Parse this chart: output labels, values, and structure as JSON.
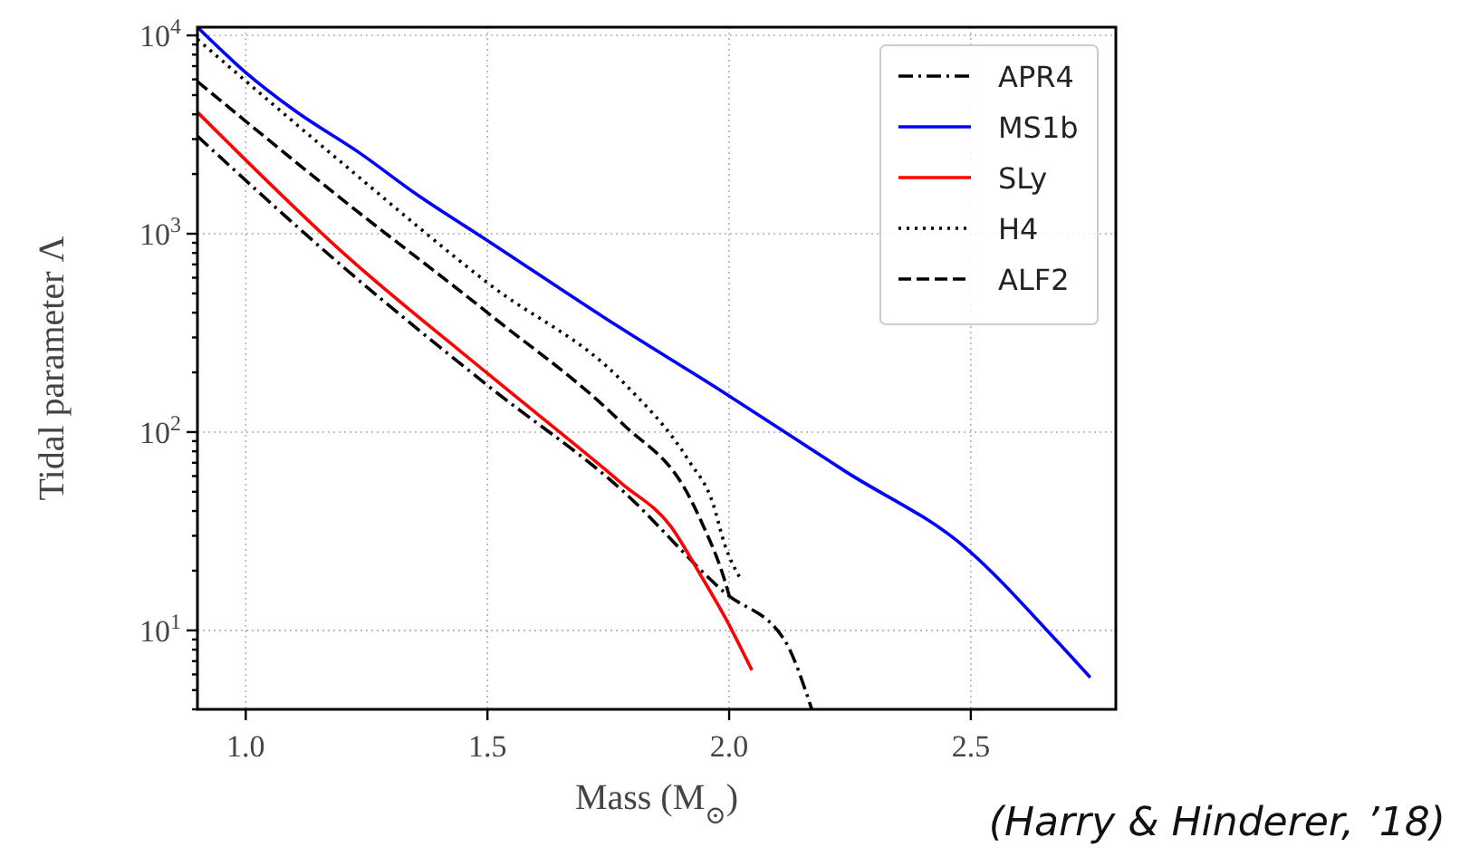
{
  "chart_data": {
    "type": "line",
    "xlabel": "Mass (M$_{⊙}$)",
    "ylabel": "Tidal parameter Λ",
    "log": "y",
    "grid": true,
    "legend": "top right",
    "xlim": [
      0.9,
      2.8
    ],
    "ylim": [
      4,
      11000
    ],
    "xticks": [
      {
        "value": 1,
        "label": "1.0"
      },
      {
        "value": 1.5,
        "label": "1.5"
      },
      {
        "value": 2,
        "label": "2.0"
      },
      {
        "value": 2.5,
        "label": "2.5"
      }
    ],
    "yticks": [
      {
        "value": 4,
        "label": null
      },
      {
        "value": 5,
        "label": null
      },
      {
        "value": 6,
        "label": null
      },
      {
        "value": 7,
        "label": null
      },
      {
        "value": 8,
        "label": null
      },
      {
        "value": 9,
        "label": null
      },
      {
        "value": 10,
        "label": "10$^{1}$"
      },
      {
        "value": 20,
        "label": null
      },
      {
        "value": 30,
        "label": null
      },
      {
        "value": 40,
        "label": null
      },
      {
        "value": 50,
        "label": null
      },
      {
        "value": 60,
        "label": null
      },
      {
        "value": 70,
        "label": null
      },
      {
        "value": 80,
        "label": null
      },
      {
        "value": 90,
        "label": null
      },
      {
        "value": 100,
        "label": "10$^{2}$"
      },
      {
        "value": 200,
        "label": null
      },
      {
        "value": 300,
        "label": null
      },
      {
        "value": 400,
        "label": null
      },
      {
        "value": 500,
        "label": null
      },
      {
        "value": 600,
        "label": null
      },
      {
        "value": 700,
        "label": null
      },
      {
        "value": 800,
        "label": null
      },
      {
        "value": 900,
        "label": null
      },
      {
        "value": 1000,
        "label": "10$^{3}$"
      },
      {
        "value": 2000,
        "label": null
      },
      {
        "value": 3000,
        "label": null
      },
      {
        "value": 4000,
        "label": null
      },
      {
        "value": 5000,
        "label": null
      },
      {
        "value": 6000,
        "label": null
      },
      {
        "value": 7000,
        "label": null
      },
      {
        "value": 8000,
        "label": null
      },
      {
        "value": 9000,
        "label": null
      },
      {
        "value": 10000,
        "label": "10$^{4}$"
      }
    ],
    "annotations": [
      "(Harry & Hinderer, ’18)"
    ],
    "series": [
      {
        "name": "APR4",
        "color": "#000000",
        "line_style": "dashdot",
        "x": [
          0.9,
          1.2,
          1.504,
          1.778,
          1.991,
          2.115,
          2.171
        ],
        "values": [
          3100,
          685,
          169,
          51,
          15.5,
          8.9,
          4
        ]
      },
      {
        "name": "MS1b",
        "color": "#0000ff",
        "line_style": "solid",
        "x": [
          0.9,
          1.0,
          1.1,
          1.241,
          1.35,
          1.504,
          1.74,
          1.991,
          2.242,
          2.49,
          2.677,
          2.747
        ],
        "values": [
          11000,
          6500,
          4200,
          2500,
          1600,
          910,
          380,
          157,
          63,
          26,
          8.9,
          5.8
        ]
      },
      {
        "name": "SLy",
        "color": "#ff0000",
        "line_style": "solid",
        "x": [
          0.9,
          1.204,
          1.504,
          1.778,
          1.879,
          1.941,
          1.991,
          2.047
        ],
        "values": [
          4100,
          790,
          194,
          55,
          33.5,
          19,
          11.7,
          6.3
        ]
      },
      {
        "name": "H4",
        "color": "#000000",
        "line_style": "dotted",
        "x": [
          0.9,
          1.2,
          1.504,
          1.778,
          1.916,
          1.966,
          1.991,
          2.026
        ],
        "values": [
          9550,
          2265,
          556,
          181,
          72,
          44,
          27,
          17.8
        ]
      },
      {
        "name": "ALF2",
        "color": "#000000",
        "line_style": "dashed",
        "x": [
          0.9,
          1.2,
          1.504,
          1.778,
          1.916,
          1.941,
          1.991,
          2.0
        ],
        "values": [
          5850,
          1486,
          393,
          111,
          48,
          36,
          17.8,
          15
        ]
      }
    ]
  }
}
